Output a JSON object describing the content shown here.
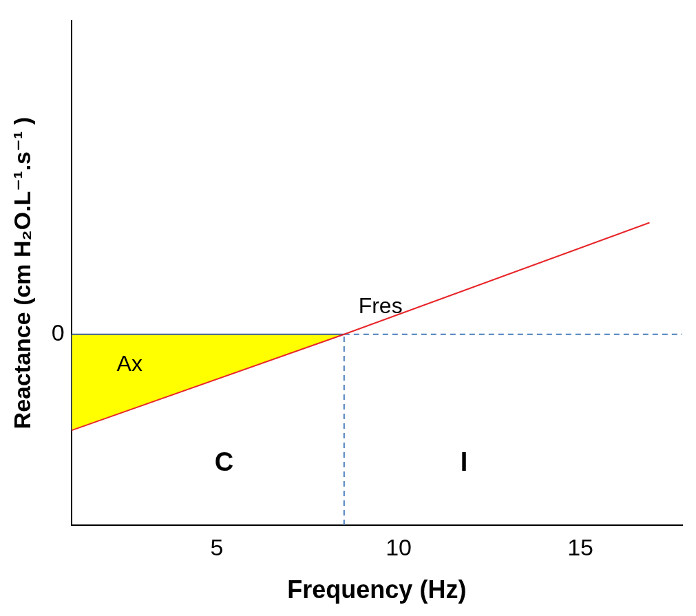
{
  "chart_data": {
    "type": "line",
    "x_label": "Frequency (Hz)",
    "y_label": "Reactance (cm H₂O.L⁻¹.s⁻¹ )",
    "xlim": [
      1,
      17.8
    ],
    "xticks": [
      5,
      10,
      15
    ],
    "ylim": [
      -2.8,
      4.6
    ],
    "yticks": [
      0
    ],
    "grid": false,
    "legend": "none",
    "series": [
      {
        "color": "#e8262a",
        "line_style": "solid",
        "marker": "none",
        "x": [
          1,
          8.5,
          16.9
        ],
        "values": [
          -1.41,
          0,
          1.64
        ]
      }
    ],
    "shaded_area": {
      "label": "Ax",
      "color": "#ffff00",
      "edge_color": "#3a5ba0",
      "x": [
        1,
        8.5
      ],
      "values": [
        -1.41,
        0
      ]
    },
    "reference_lines": [
      {
        "x": 8.5,
        "color": "#4a7ebb",
        "line_style": "dashed"
      },
      {
        "y": 0,
        "color": "#4a7ebb",
        "line_style": "dashed"
      }
    ],
    "annotations": [
      {
        "text": "Ax",
        "x": 2.6,
        "y": -0.45
      },
      {
        "text": "Fres",
        "x": 9.5,
        "y": 0.4
      },
      {
        "text": "C",
        "x": 5.2,
        "y": -1.9
      },
      {
        "text": "I",
        "x": 11.8,
        "y": -1.9
      }
    ]
  }
}
